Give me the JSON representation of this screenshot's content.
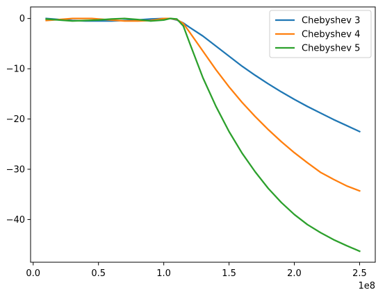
{
  "chart_data": {
    "type": "line",
    "title": "",
    "xlabel": "",
    "ylabel": "",
    "x_offset_label": "1e8",
    "xlim": [
      -0.02,
      2.62
    ],
    "ylim": [
      -48.5,
      2.3
    ],
    "x_ticks": [
      {
        "value": 0.0,
        "label": "0.0"
      },
      {
        "value": 0.5,
        "label": "0.5"
      },
      {
        "value": 1.0,
        "label": "1.0"
      },
      {
        "value": 1.5,
        "label": "1.5"
      },
      {
        "value": 2.0,
        "label": "2.0"
      },
      {
        "value": 2.5,
        "label": "2.5"
      }
    ],
    "y_ticks": [
      {
        "value": 0,
        "label": "0"
      },
      {
        "value": -10,
        "label": "−10"
      },
      {
        "value": -20,
        "label": "−20"
      },
      {
        "value": -30,
        "label": "−30"
      },
      {
        "value": -40,
        "label": "−40"
      }
    ],
    "grid": false,
    "legend": {
      "position": "top-right"
    },
    "series": [
      {
        "name": "Chebyshev 3",
        "color": "#1f77b4",
        "x": [
          0.1,
          0.2,
          0.3,
          0.4,
          0.5,
          0.6,
          0.7,
          0.8,
          0.9,
          1.0,
          1.05,
          1.1,
          1.15,
          1.2,
          1.3,
          1.4,
          1.5,
          1.6,
          1.7,
          1.8,
          1.9,
          2.0,
          2.1,
          2.2,
          2.3,
          2.4,
          2.5
        ],
        "y": [
          0.0,
          -0.2,
          -0.4,
          -0.5,
          -0.5,
          -0.5,
          -0.4,
          -0.3,
          -0.1,
          0.0,
          0.0,
          -0.3,
          -0.9,
          -1.8,
          -3.5,
          -5.5,
          -7.5,
          -9.5,
          -11.3,
          -13.0,
          -14.6,
          -16.1,
          -17.5,
          -18.8,
          -20.1,
          -21.3,
          -22.5
        ]
      },
      {
        "name": "Chebyshev 4",
        "color": "#ff7f0e",
        "x": [
          0.1,
          0.2,
          0.3,
          0.4,
          0.45,
          0.5,
          0.6,
          0.7,
          0.8,
          0.9,
          1.0,
          1.05,
          1.1,
          1.15,
          1.2,
          1.3,
          1.4,
          1.5,
          1.6,
          1.7,
          1.8,
          1.9,
          2.0,
          2.1,
          2.2,
          2.3,
          2.4,
          2.5
        ],
        "y": [
          -0.4,
          -0.2,
          0.0,
          0.0,
          0.0,
          -0.1,
          -0.3,
          -0.5,
          -0.5,
          -0.4,
          0.0,
          0.0,
          -0.2,
          -1.0,
          -2.8,
          -6.5,
          -10.2,
          -13.6,
          -16.7,
          -19.5,
          -22.1,
          -24.5,
          -26.7,
          -28.7,
          -30.6,
          -32.0,
          -33.3,
          -34.3
        ]
      },
      {
        "name": "Chebyshev 5",
        "color": "#2ca02c",
        "x": [
          0.1,
          0.2,
          0.3,
          0.4,
          0.5,
          0.6,
          0.7,
          0.8,
          0.9,
          1.0,
          1.05,
          1.1,
          1.15,
          1.2,
          1.3,
          1.4,
          1.5,
          1.6,
          1.7,
          1.8,
          1.9,
          2.0,
          2.1,
          2.2,
          2.3,
          2.4,
          2.5
        ],
        "y": [
          -0.1,
          -0.3,
          -0.5,
          -0.4,
          -0.3,
          -0.1,
          0.0,
          -0.2,
          -0.5,
          -0.3,
          0.0,
          -0.1,
          -1.5,
          -5.0,
          -11.8,
          -17.5,
          -22.5,
          -26.8,
          -30.5,
          -33.8,
          -36.6,
          -39.0,
          -41.0,
          -42.6,
          -44.0,
          -45.2,
          -46.3
        ]
      }
    ]
  }
}
